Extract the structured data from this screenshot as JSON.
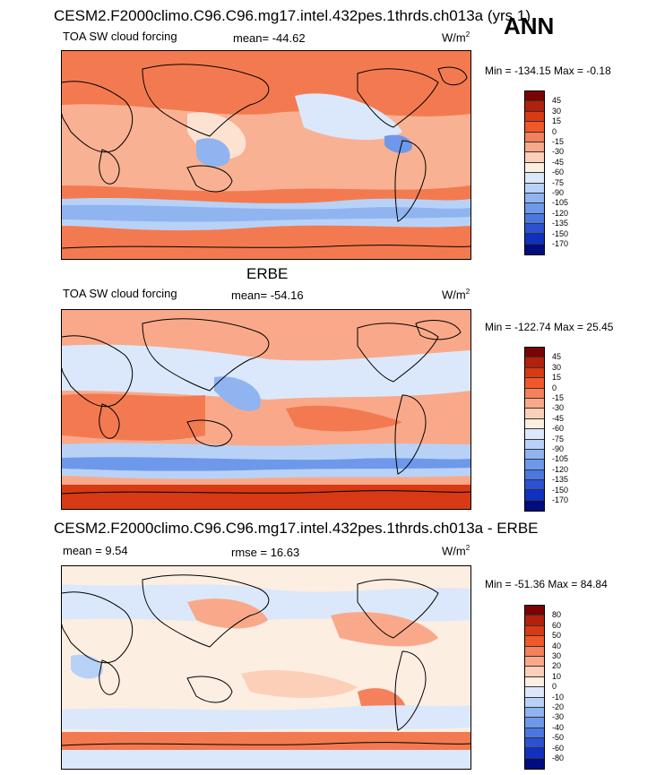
{
  "chart_data": [
    {
      "type": "heatmap",
      "panel": "model",
      "title": "CESM2.F2000climo.C96.C96.mg17.intel.432pes.1thrds.ch013a (yrs 1)",
      "left_label": "TOA SW cloud forcing",
      "stat_label": "mean= -44.62",
      "units": "W/m",
      "units_sup": "2",
      "min_max": "Min = -134.15 Max =  -0.18",
      "colorbar_labels": [
        "45",
        "30",
        "15",
        "0",
        "-15",
        "-30",
        "-45",
        "-60",
        "-75",
        "-90",
        "-105",
        "-120",
        "-135",
        "-150",
        "-170"
      ],
      "colorbar_colors": [
        "#7a0403",
        "#b3200b",
        "#d73a14",
        "#f0582a",
        "#f5805c",
        "#f9a98a",
        "#fcd0b8",
        "#fdeee2",
        "#dbe8fb",
        "#b8d2f7",
        "#8fb4f0",
        "#6e98ea",
        "#4b78e0",
        "#2a52d3",
        "#1030c0",
        "#000d80"
      ]
    },
    {
      "type": "heatmap",
      "panel": "obs",
      "title": "ERBE",
      "left_label": "TOA SW cloud forcing",
      "stat_label": "mean= -54.16",
      "units": "W/m",
      "units_sup": "2",
      "min_max": "Min = -122.74 Max =  25.45",
      "colorbar_labels": [
        "45",
        "30",
        "15",
        "0",
        "-15",
        "-30",
        "-45",
        "-60",
        "-75",
        "-90",
        "-105",
        "-120",
        "-135",
        "-150",
        "-170"
      ],
      "colorbar_colors": [
        "#7a0403",
        "#b3200b",
        "#d73a14",
        "#f0582a",
        "#f5805c",
        "#f9a98a",
        "#fcd0b8",
        "#fdeee2",
        "#dbe8fb",
        "#b8d2f7",
        "#8fb4f0",
        "#6e98ea",
        "#4b78e0",
        "#2a52d3",
        "#1030c0",
        "#000d80"
      ]
    },
    {
      "type": "heatmap",
      "panel": "diff",
      "title": "CESM2.F2000climo.C96.C96.mg17.intel.432pes.1thrds.ch013a - ERBE",
      "left_label": "mean =   9.54",
      "stat_label": "rmse =  16.63",
      "units": "W/m",
      "units_sup": "2",
      "min_max": "Min = -51.36 Max =  84.84",
      "colorbar_labels": [
        "80",
        "60",
        "50",
        "40",
        "30",
        "20",
        "10",
        "0",
        "-10",
        "-20",
        "-30",
        "-40",
        "-50",
        "-60",
        "-80"
      ],
      "colorbar_colors": [
        "#7a0403",
        "#b3200b",
        "#d73a14",
        "#f0582a",
        "#f5805c",
        "#f9a98a",
        "#fcd0b8",
        "#fdeee2",
        "#dbe8fb",
        "#b8d2f7",
        "#8fb4f0",
        "#6e98ea",
        "#4b78e0",
        "#2a52d3",
        "#1030c0",
        "#000d80"
      ]
    }
  ],
  "season": "ANN"
}
